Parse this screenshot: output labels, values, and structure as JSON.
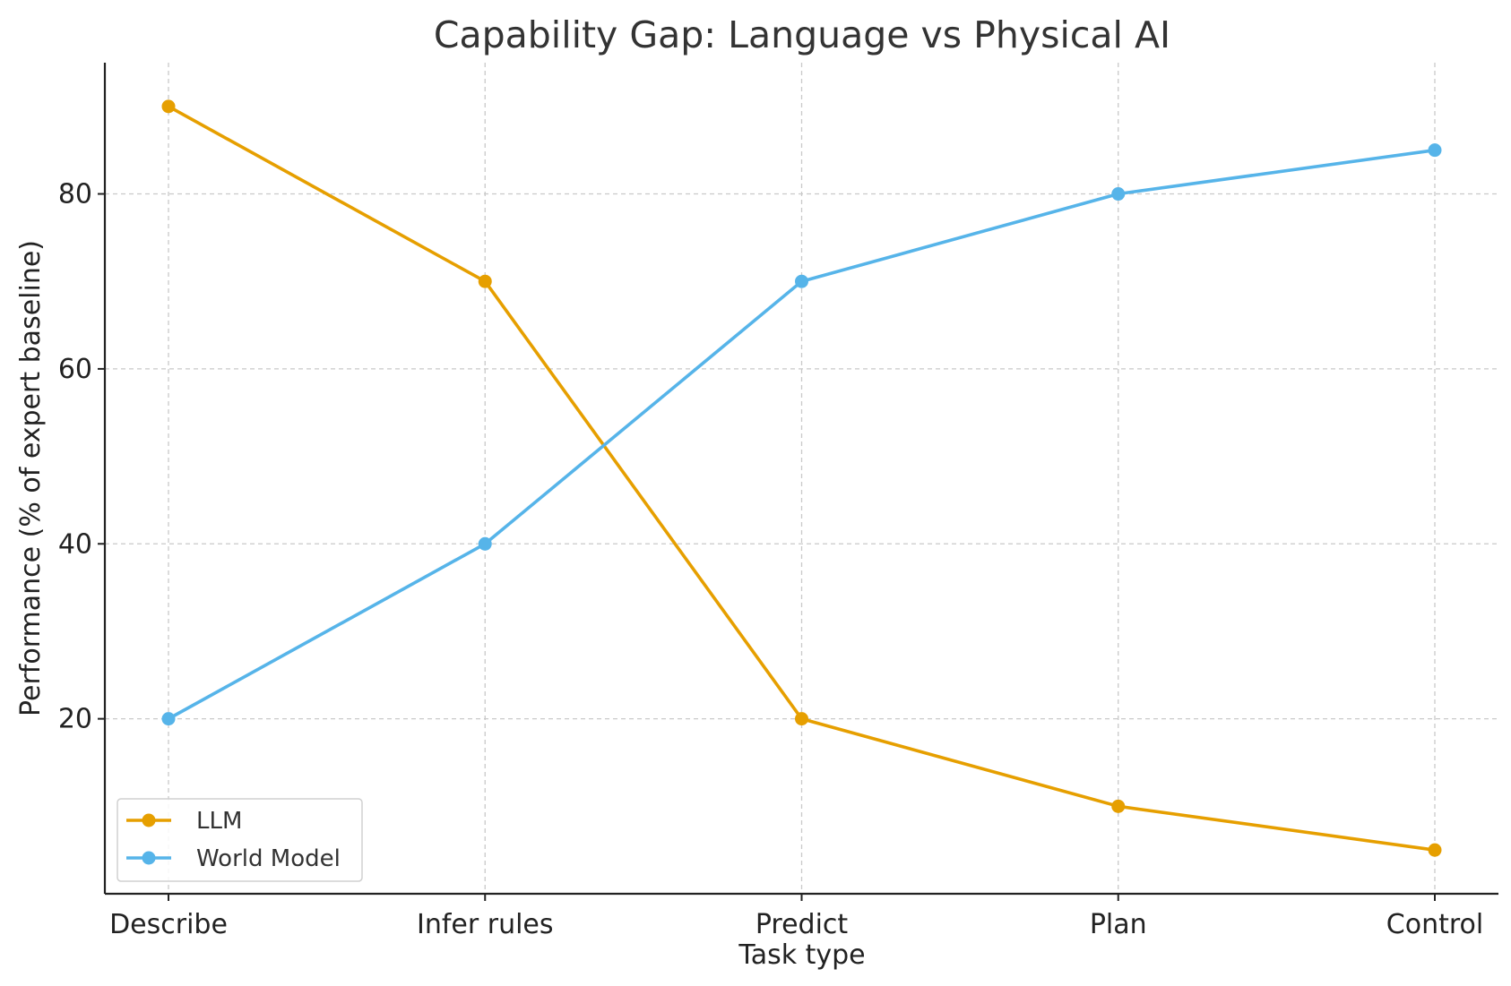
{
  "chart_data": {
    "type": "line",
    "title": "Capability Gap: Language vs Physical AI",
    "xlabel": "Task type",
    "ylabel": "Performance (% of expert baseline)",
    "categories": [
      "Describe",
      "Infer rules",
      "Predict",
      "Plan",
      "Control"
    ],
    "ylim": [
      0,
      95
    ],
    "yticks": [
      20,
      40,
      60,
      80
    ],
    "grid": true,
    "legend_position": "lower-left",
    "series": [
      {
        "name": "LLM",
        "color": "#E69F00",
        "values": [
          90,
          70,
          20,
          10,
          5
        ]
      },
      {
        "name": "World Model",
        "color": "#56B4E9",
        "values": [
          20,
          40,
          70,
          80,
          85
        ]
      }
    ]
  }
}
